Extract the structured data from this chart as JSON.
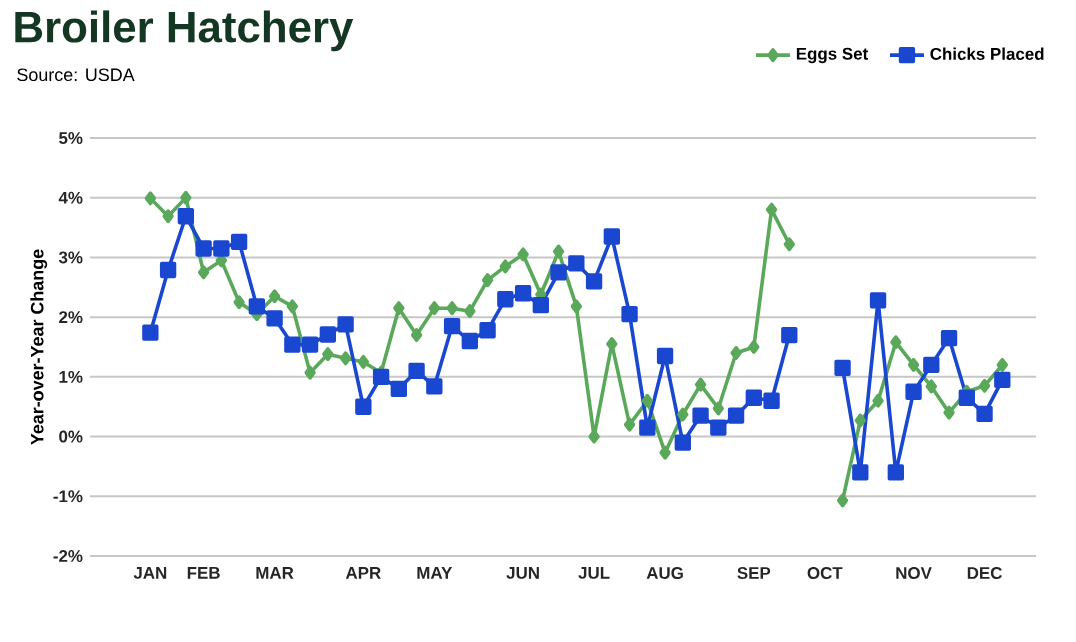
{
  "chart_data": {
    "type": "line",
    "title": "Broiler Hatchery",
    "annotations": [
      "Source: USDA"
    ],
    "ylabel": "Year-over-Year Change",
    "categories": [
      "JAN",
      null,
      null,
      "FEB",
      null,
      null,
      null,
      "MAR",
      null,
      null,
      null,
      null,
      "APR",
      null,
      null,
      null,
      "MAY",
      null,
      null,
      null,
      null,
      "JUN",
      null,
      null,
      null,
      "JUL",
      null,
      null,
      null,
      "AUG",
      null,
      null,
      null,
      null,
      "SEP",
      null,
      null,
      null,
      "OCT",
      null,
      null,
      null,
      null,
      "NOV",
      null,
      null,
      null,
      "DEC",
      null
    ],
    "ylim": [
      -2,
      5
    ],
    "yticks": [
      {
        "value": -2,
        "label": "-2%"
      },
      {
        "value": -1,
        "label": "-1%"
      },
      {
        "value": 0,
        "label": "0%"
      },
      {
        "value": 1,
        "label": "1%"
      },
      {
        "value": 2,
        "label": "2%"
      },
      {
        "value": 3,
        "label": "3%"
      },
      {
        "value": 4,
        "label": "4%"
      },
      {
        "value": 5,
        "label": "5%"
      }
    ],
    "grid": "y",
    "legend": "top right",
    "line_style": "solid",
    "series": [
      {
        "name": "Eggs Set",
        "color": "#5aa85a",
        "marker": "diamond",
        "values": [
          3.99,
          3.69,
          4.0,
          2.75,
          2.95,
          2.25,
          2.05,
          2.35,
          2.18,
          1.07,
          1.38,
          1.31,
          1.25,
          1.07,
          2.15,
          1.7,
          2.15,
          2.15,
          2.1,
          2.62,
          2.85,
          3.05,
          2.38,
          3.1,
          2.18,
          0.0,
          1.55,
          0.2,
          0.6,
          -0.27,
          0.37,
          0.87,
          0.47,
          1.4,
          1.5,
          3.8,
          3.22,
          null,
          null,
          -1.07,
          0.27,
          0.6,
          1.58,
          1.2,
          0.84,
          0.4,
          0.75,
          0.85,
          1.2
        ]
      },
      {
        "name": "Chicks Placed",
        "color": "#1a47d0",
        "marker": "square",
        "values": [
          1.74,
          2.79,
          3.69,
          3.15,
          3.15,
          3.26,
          2.18,
          1.98,
          1.54,
          1.54,
          1.71,
          1.88,
          0.5,
          1.0,
          0.8,
          1.1,
          0.84,
          1.85,
          1.6,
          1.78,
          2.3,
          2.4,
          2.2,
          2.75,
          2.9,
          2.6,
          3.35,
          2.05,
          0.15,
          1.35,
          -0.1,
          0.35,
          0.15,
          0.35,
          0.65,
          0.6,
          1.7,
          null,
          null,
          1.15,
          -0.6,
          2.28,
          -0.6,
          0.75,
          1.2,
          1.65,
          0.65,
          0.38,
          0.95
        ]
      }
    ]
  }
}
